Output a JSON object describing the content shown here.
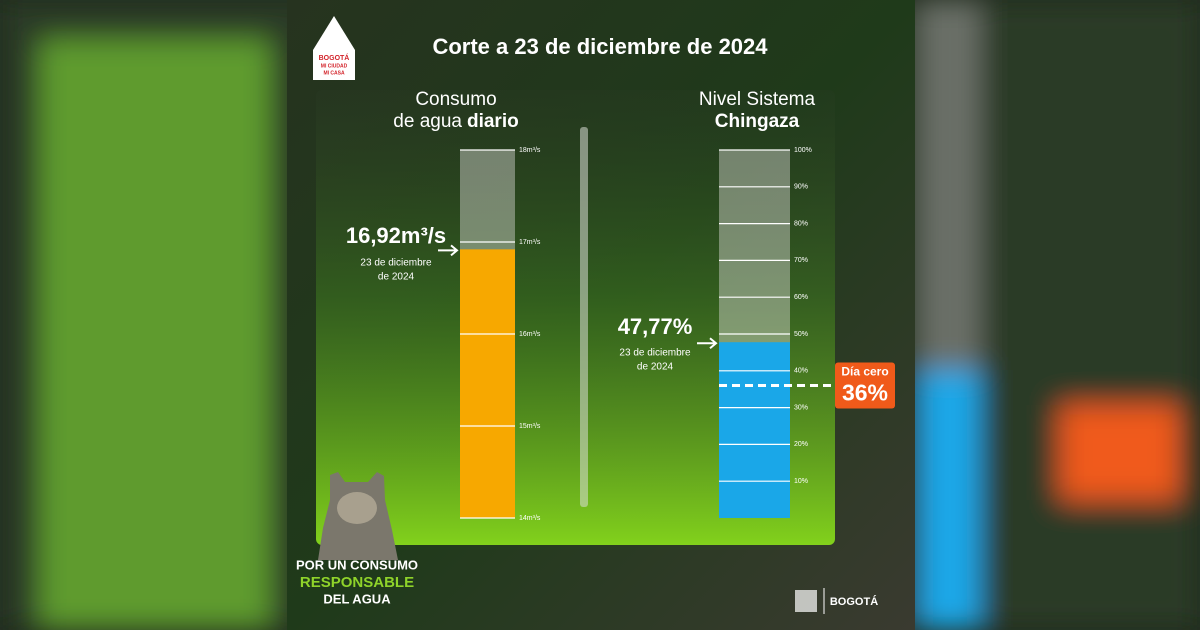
{
  "title": "Corte a 23 de diciembre de 2024",
  "logo": [
    "BOGOTÁ",
    "MI CIUDAD",
    "MI CASA"
  ],
  "footer": [
    "POR UN CONSUMO",
    "RESPONSABLE",
    "DEL AGUA"
  ],
  "brand": "BOGOTÁ",
  "chart_data": [
    {
      "type": "bar",
      "title": [
        "Consumo",
        "de agua",
        "diario"
      ],
      "values": [
        16.92
      ],
      "value_labels": [
        "16,92m³/s"
      ],
      "annotation": [
        "23 de diciembre",
        "de 2024"
      ],
      "color": "#f7a800",
      "ylim": [
        14,
        18
      ],
      "yticks": [
        {
          "value": 14,
          "label": "14m³/s"
        },
        {
          "value": 15,
          "label": "15m³/s"
        },
        {
          "value": 16,
          "label": "16m³/s"
        },
        {
          "value": 17,
          "label": "17m³/s"
        },
        {
          "value": 18,
          "label": "18m³/s"
        }
      ]
    },
    {
      "type": "bar",
      "title": [
        "Nivel Sistema",
        "Chingaza"
      ],
      "values": [
        47.77
      ],
      "value_labels": [
        "47,77%"
      ],
      "annotation": [
        "23 de diciembre",
        "de 2024"
      ],
      "color": "#1aa7e8",
      "ylim": [
        0,
        100
      ],
      "yticks": [
        {
          "value": 10,
          "label": "10%"
        },
        {
          "value": 20,
          "label": "20%"
        },
        {
          "value": 30,
          "label": "30%"
        },
        {
          "value": 40,
          "label": "40%"
        },
        {
          "value": 50,
          "label": "50%"
        },
        {
          "value": 60,
          "label": "60%"
        },
        {
          "value": 70,
          "label": "70%"
        },
        {
          "value": 80,
          "label": "80%"
        },
        {
          "value": 90,
          "label": "90%"
        },
        {
          "value": 100,
          "label": "100%"
        }
      ],
      "threshold": {
        "value": 36,
        "label": "36%",
        "title": "Día cero",
        "color": "#f05a1a"
      }
    }
  ]
}
